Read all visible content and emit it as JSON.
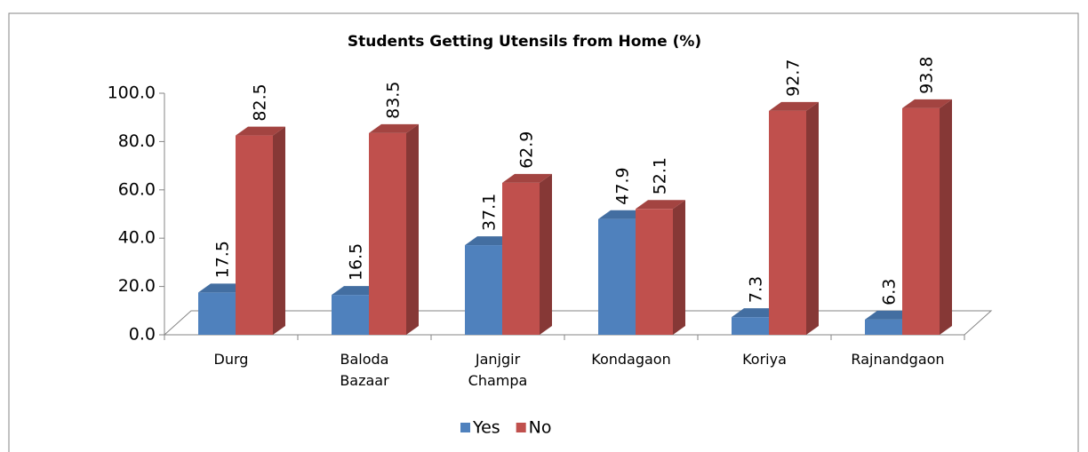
{
  "chart_data": {
    "type": "bar3d",
    "title": "Students Getting Utensils from Home (%)",
    "categories": [
      "Durg",
      "Baloda Bazaar",
      "Janjgir Champa",
      "Kondagaon",
      "Koriya",
      "Rajnandgaon"
    ],
    "series": [
      {
        "name": "Yes",
        "color": "#4f81bd",
        "values": [
          17.5,
          16.5,
          37.1,
          47.9,
          7.3,
          6.3
        ]
      },
      {
        "name": "No",
        "color": "#c0504d",
        "values": [
          82.5,
          83.5,
          62.9,
          52.1,
          92.7,
          93.8
        ]
      }
    ],
    "ylim": [
      0,
      100
    ],
    "yticks": [
      {
        "value": 0,
        "label": "0.0"
      },
      {
        "value": 20,
        "label": "20.0"
      },
      {
        "value": 40,
        "label": "40.0"
      },
      {
        "value": 60,
        "label": "60.0"
      },
      {
        "value": 80,
        "label": "80.0"
      },
      {
        "value": 100,
        "label": "100.0"
      }
    ],
    "legend": "bottom"
  }
}
